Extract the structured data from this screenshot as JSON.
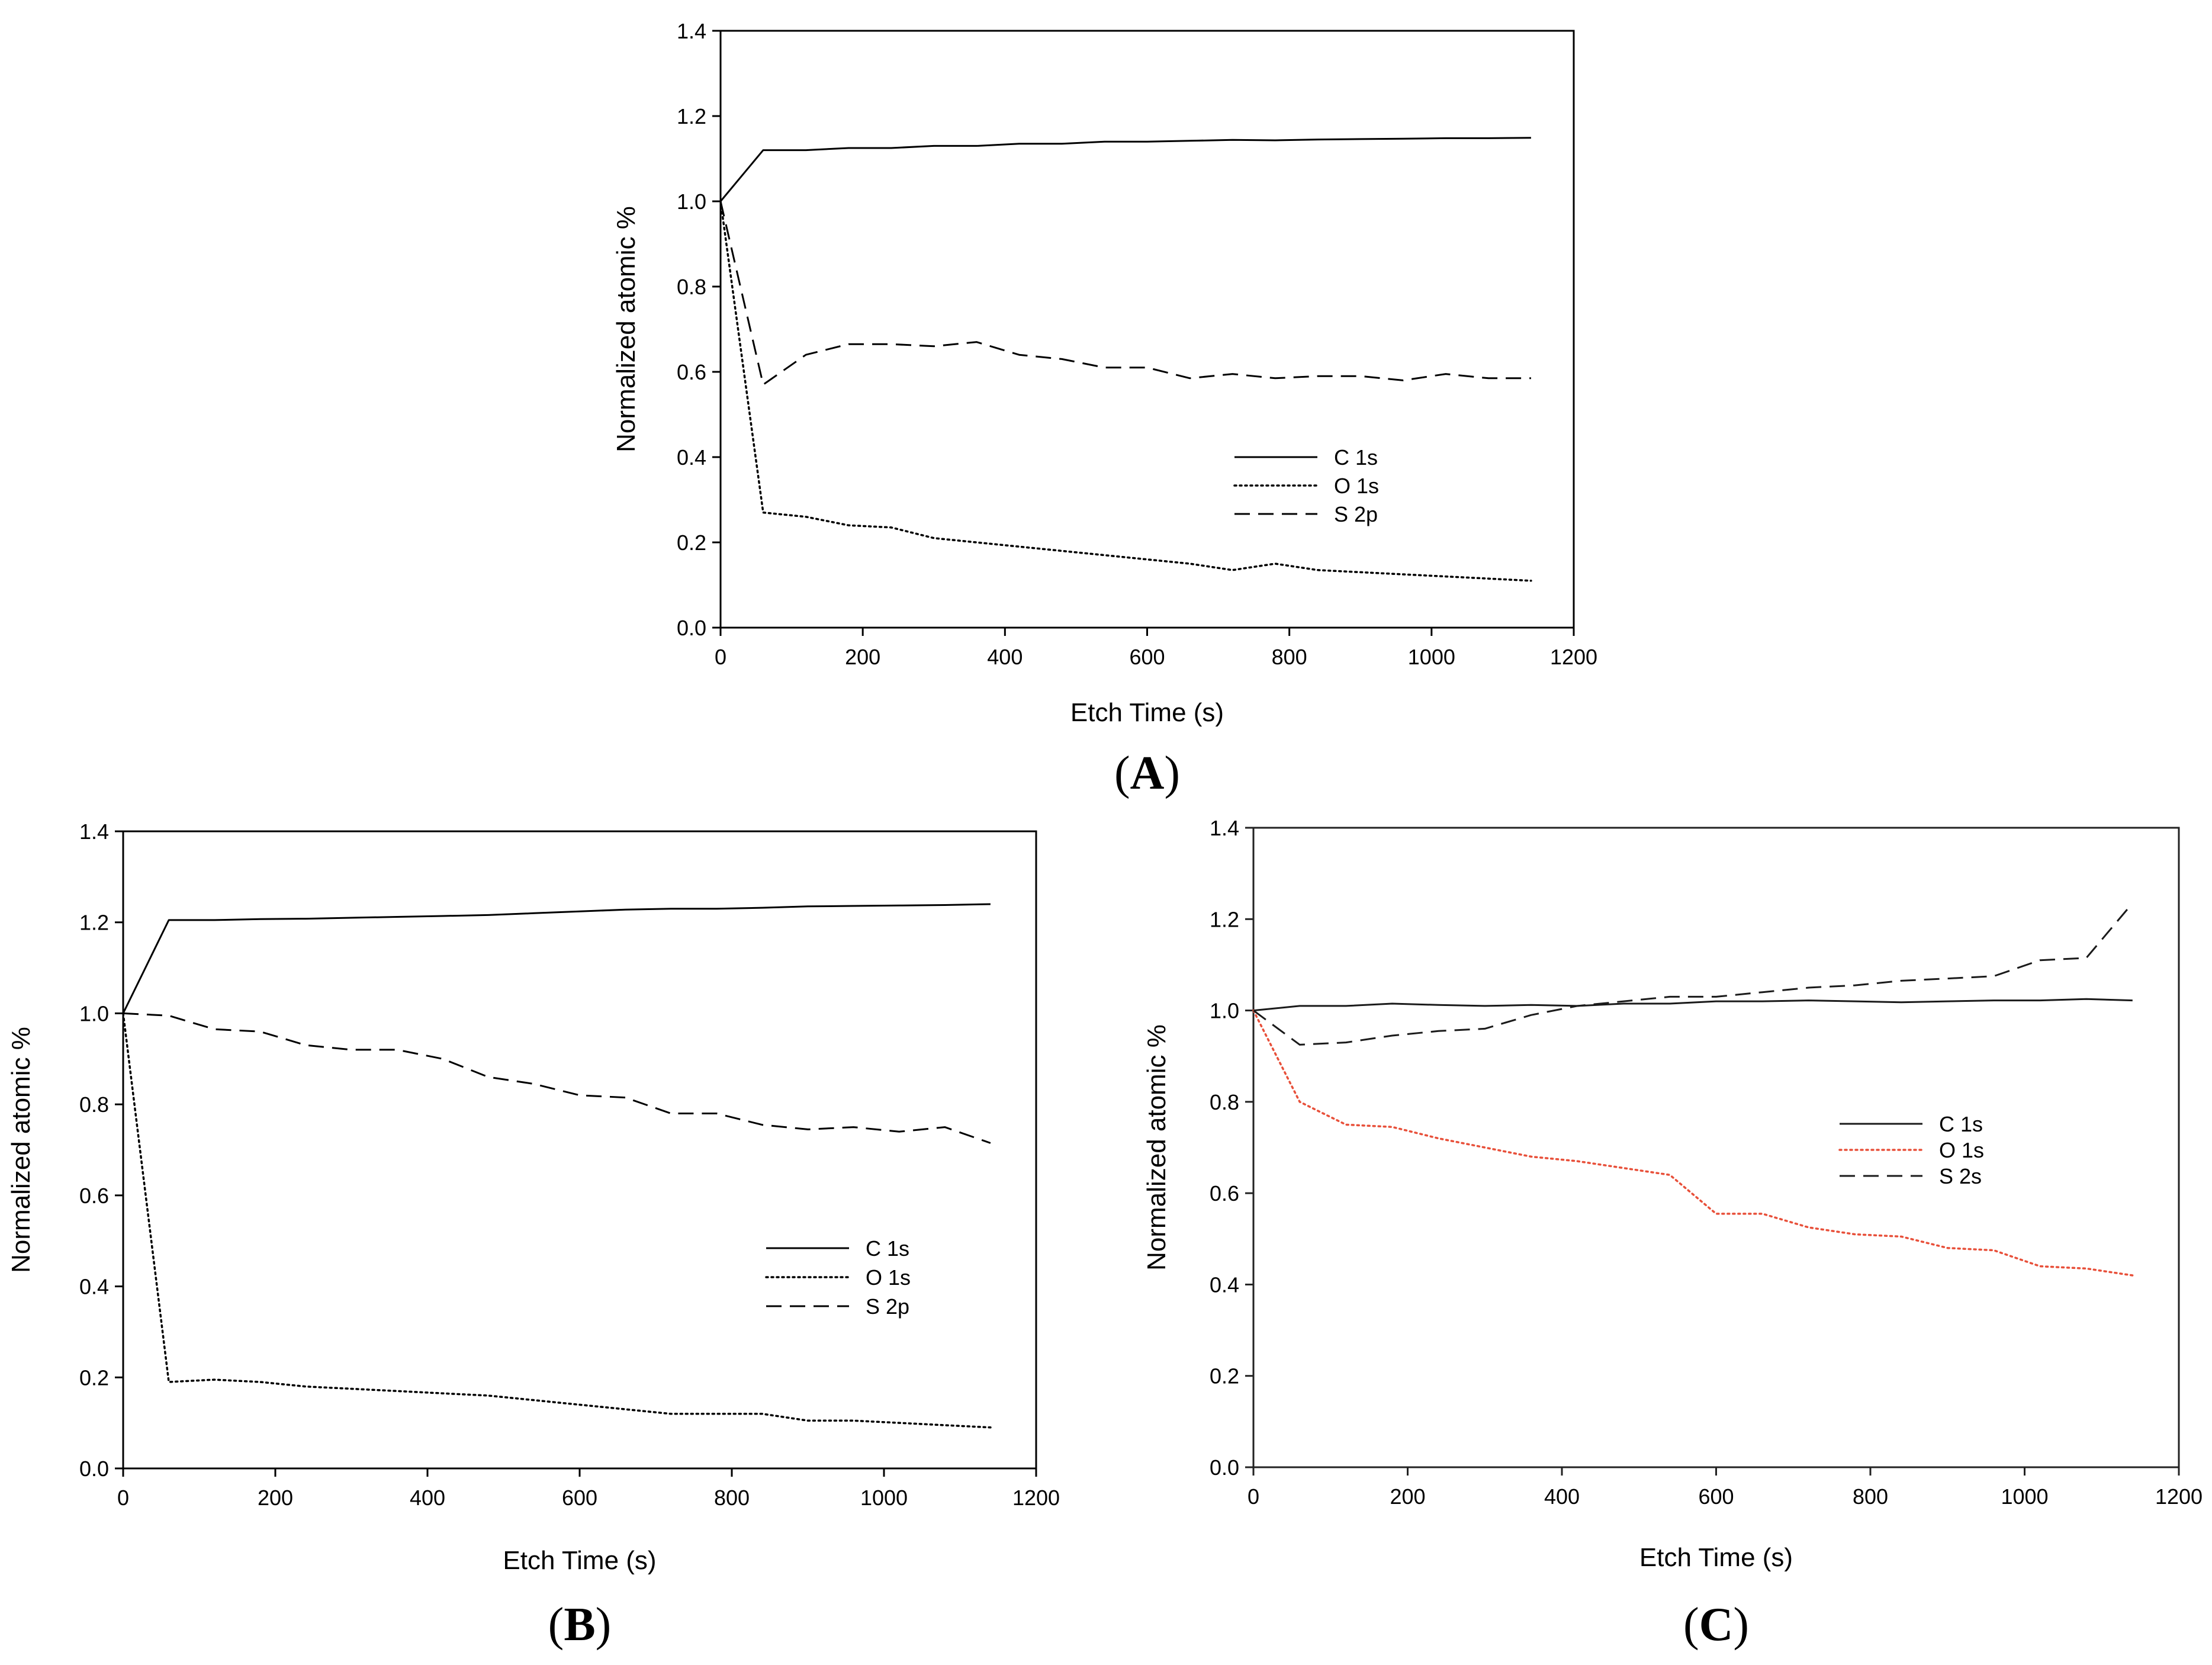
{
  "chart_data": [
    {
      "id": "A",
      "type": "line",
      "panel_label": "A",
      "title": "",
      "xlabel": "Etch Time (s)",
      "ylabel": "Normalized atomic %",
      "xlim": [
        0,
        1200
      ],
      "ylim": [
        0,
        1.4
      ],
      "xticks": [
        0,
        200,
        400,
        600,
        800,
        1000,
        1200
      ],
      "yticks": [
        0.0,
        0.2,
        0.4,
        0.6,
        0.8,
        1.0,
        1.2,
        1.4
      ],
      "xtick_labels": [
        "0",
        "200",
        "400",
        "600",
        "800",
        "1000",
        "1200"
      ],
      "ytick_labels": [
        "0.0",
        "0.2",
        "0.4",
        "0.6",
        "0.8",
        "1.0",
        "1.2",
        "1.4"
      ],
      "legend_position": "center-right",
      "series": [
        {
          "name": "C 1s",
          "style": "solid",
          "color": "#000000",
          "x": [
            0,
            60,
            120,
            180,
            240,
            300,
            360,
            420,
            480,
            540,
            600,
            660,
            720,
            780,
            840,
            900,
            960,
            1020,
            1080,
            1140
          ],
          "y": [
            1.0,
            1.12,
            1.12,
            1.125,
            1.125,
            1.13,
            1.13,
            1.135,
            1.135,
            1.14,
            1.14,
            1.142,
            1.144,
            1.143,
            1.145,
            1.146,
            1.147,
            1.148,
            1.148,
            1.149
          ]
        },
        {
          "name": "O 1s",
          "style": "dotted",
          "color": "#000000",
          "x": [
            0,
            60,
            120,
            180,
            240,
            300,
            360,
            420,
            480,
            540,
            600,
            660,
            720,
            780,
            840,
            900,
            960,
            1020,
            1080,
            1140
          ],
          "y": [
            1.0,
            0.27,
            0.26,
            0.24,
            0.235,
            0.21,
            0.2,
            0.19,
            0.18,
            0.17,
            0.16,
            0.15,
            0.135,
            0.15,
            0.135,
            0.13,
            0.125,
            0.12,
            0.115,
            0.11
          ]
        },
        {
          "name": "S 2p",
          "style": "dashed",
          "color": "#000000",
          "x": [
            0,
            60,
            120,
            180,
            240,
            300,
            360,
            420,
            480,
            540,
            600,
            660,
            720,
            780,
            840,
            900,
            960,
            1020,
            1080,
            1140
          ],
          "y": [
            1.0,
            0.57,
            0.64,
            0.665,
            0.665,
            0.66,
            0.67,
            0.64,
            0.63,
            0.61,
            0.61,
            0.585,
            0.595,
            0.585,
            0.59,
            0.59,
            0.58,
            0.595,
            0.585,
            0.585
          ]
        }
      ]
    },
    {
      "id": "B",
      "type": "line",
      "panel_label": "B",
      "title": "",
      "xlabel": "Etch Time (s)",
      "ylabel": "Normalized atomic %",
      "xlim": [
        0,
        1200
      ],
      "ylim": [
        0,
        1.4
      ],
      "xticks": [
        0,
        200,
        400,
        600,
        800,
        1000,
        1200
      ],
      "yticks": [
        0.0,
        0.2,
        0.4,
        0.6,
        0.8,
        1.0,
        1.2,
        1.4
      ],
      "xtick_labels": [
        "0",
        "200",
        "400",
        "600",
        "800",
        "1000",
        "1200"
      ],
      "ytick_labels": [
        "0.0",
        "0.2",
        "0.4",
        "0.6",
        "0.8",
        "1.0",
        "1.2",
        "1.4"
      ],
      "legend_position": "center-right",
      "series": [
        {
          "name": "C 1s",
          "style": "solid",
          "color": "#000000",
          "x": [
            0,
            60,
            120,
            180,
            240,
            300,
            360,
            420,
            480,
            540,
            600,
            660,
            720,
            780,
            840,
            900,
            960,
            1020,
            1080,
            1140
          ],
          "y": [
            1.0,
            1.205,
            1.205,
            1.207,
            1.208,
            1.21,
            1.212,
            1.214,
            1.216,
            1.22,
            1.224,
            1.228,
            1.23,
            1.23,
            1.232,
            1.235,
            1.236,
            1.237,
            1.238,
            1.24
          ]
        },
        {
          "name": "O 1s",
          "style": "dotted",
          "color": "#000000",
          "x": [
            0,
            60,
            120,
            180,
            240,
            300,
            360,
            420,
            480,
            540,
            600,
            660,
            720,
            780,
            840,
            900,
            960,
            1020,
            1080,
            1140
          ],
          "y": [
            1.0,
            0.19,
            0.195,
            0.19,
            0.18,
            0.175,
            0.17,
            0.165,
            0.16,
            0.15,
            0.14,
            0.13,
            0.12,
            0.12,
            0.12,
            0.105,
            0.105,
            0.1,
            0.095,
            0.09
          ]
        },
        {
          "name": "S 2p",
          "style": "dashed",
          "color": "#000000",
          "x": [
            0,
            60,
            120,
            180,
            240,
            300,
            360,
            420,
            480,
            540,
            600,
            660,
            720,
            780,
            840,
            900,
            960,
            1020,
            1080,
            1140
          ],
          "y": [
            1.0,
            0.995,
            0.965,
            0.96,
            0.93,
            0.92,
            0.92,
            0.9,
            0.86,
            0.845,
            0.82,
            0.815,
            0.78,
            0.78,
            0.755,
            0.745,
            0.75,
            0.74,
            0.75,
            0.715
          ]
        }
      ]
    },
    {
      "id": "C",
      "type": "line",
      "panel_label": "C",
      "title": "",
      "xlabel": "Etch Time (s)",
      "ylabel": "Normalized atomic %",
      "xlim": [
        0,
        1200
      ],
      "ylim": [
        0,
        1.4
      ],
      "xticks": [
        0,
        200,
        400,
        600,
        800,
        1000,
        1200
      ],
      "yticks": [
        0.0,
        0.2,
        0.4,
        0.6,
        0.8,
        1.0,
        1.2,
        1.4
      ],
      "xtick_labels": [
        "0",
        "200",
        "400",
        "600",
        "800",
        "1000",
        "1200"
      ],
      "ytick_labels": [
        "0.0",
        "0.2",
        "0.4",
        "0.6",
        "0.8",
        "1.0",
        "1.2",
        "1.4"
      ],
      "legend_position": "center-right",
      "series": [
        {
          "name": "C 1s",
          "style": "solid",
          "color": "#1a1a1a",
          "x": [
            0,
            60,
            120,
            180,
            240,
            300,
            360,
            420,
            480,
            540,
            600,
            660,
            720,
            780,
            840,
            900,
            960,
            1020,
            1080,
            1140
          ],
          "y": [
            1.0,
            1.01,
            1.01,
            1.015,
            1.012,
            1.01,
            1.012,
            1.01,
            1.015,
            1.015,
            1.02,
            1.02,
            1.022,
            1.02,
            1.018,
            1.02,
            1.022,
            1.022,
            1.025,
            1.022
          ]
        },
        {
          "name": "O 1s",
          "style": "dotted",
          "color": "#e8503a",
          "x": [
            0,
            60,
            120,
            180,
            240,
            300,
            360,
            420,
            480,
            540,
            600,
            660,
            720,
            780,
            840,
            900,
            960,
            1020,
            1080,
            1140
          ],
          "y": [
            1.0,
            0.8,
            0.75,
            0.745,
            0.72,
            0.7,
            0.68,
            0.67,
            0.655,
            0.64,
            0.555,
            0.555,
            0.525,
            0.51,
            0.505,
            0.48,
            0.475,
            0.44,
            0.435,
            0.42
          ]
        },
        {
          "name": "S 2s",
          "style": "dashed",
          "color": "#1a1a1a",
          "x": [
            0,
            60,
            120,
            180,
            240,
            300,
            360,
            420,
            480,
            540,
            600,
            660,
            720,
            780,
            840,
            900,
            960,
            1020,
            1080,
            1140
          ],
          "y": [
            1.0,
            0.925,
            0.93,
            0.945,
            0.955,
            0.96,
            0.99,
            1.01,
            1.02,
            1.03,
            1.03,
            1.04,
            1.05,
            1.055,
            1.065,
            1.07,
            1.075,
            1.11,
            1.115,
            1.235
          ]
        }
      ]
    }
  ]
}
